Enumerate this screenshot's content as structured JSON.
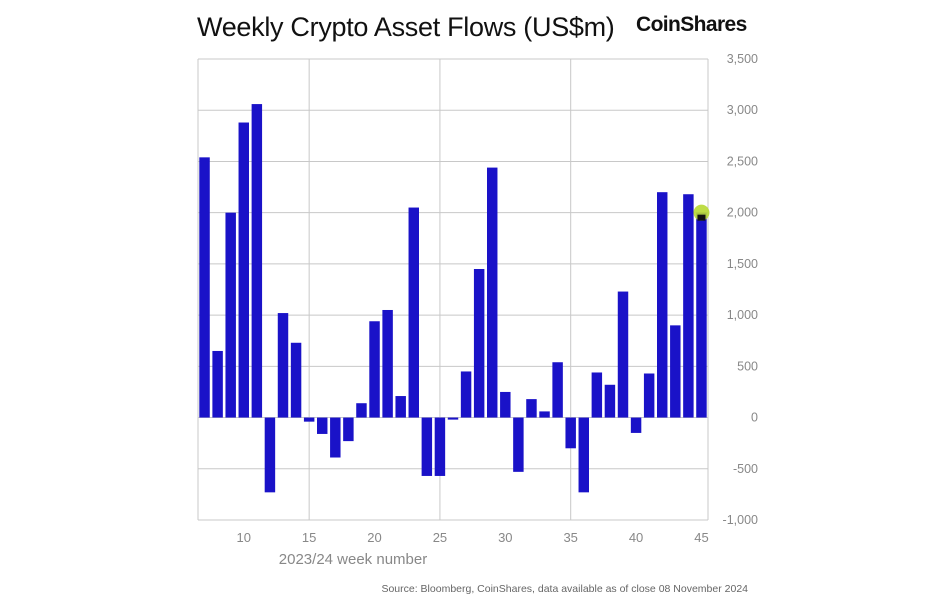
{
  "title": "Weekly Crypto Asset Flows (US$m)",
  "logo_text": "CoinShares",
  "source": "Source: Bloomberg, CoinShares, data available as of close 08 November 2024",
  "colors": {
    "bar": "#1a12c8",
    "grid": "#c8c8c8",
    "marker": "#b7d833"
  },
  "chart_data": {
    "type": "bar",
    "title": "Weekly Crypto Asset Flows (US$m)",
    "xlabel": "2023/24 week number",
    "ylabel": "US$m",
    "y_axis_side": "right",
    "ylim": [
      -1000,
      3500
    ],
    "ytick_values": [
      -1000,
      -500,
      0,
      500,
      1000,
      1500,
      2000,
      2500,
      3000,
      3500
    ],
    "ytick_labels": [
      "-1,000",
      "-500",
      "0",
      "500",
      "1,000",
      "1,500",
      "2,000",
      "2,500",
      "3,000",
      "3,500"
    ],
    "xlim": [
      6.5,
      45.5
    ],
    "xtick_values": [
      10,
      15,
      20,
      25,
      30,
      35,
      40,
      45
    ],
    "xtick_labels": [
      "10",
      "15",
      "20",
      "25",
      "30",
      "35",
      "40",
      "45"
    ],
    "vertical_grid_weeks": [
      15,
      25,
      35
    ],
    "weeks": [
      7,
      8,
      9,
      10,
      11,
      12,
      13,
      14,
      15,
      16,
      17,
      18,
      19,
      20,
      21,
      22,
      23,
      24,
      25,
      26,
      27,
      28,
      29,
      30,
      31,
      32,
      33,
      34,
      35,
      36,
      37,
      38,
      39,
      40,
      41,
      42,
      43,
      44,
      45
    ],
    "values": [
      2540,
      650,
      2000,
      2880,
      3060,
      -730,
      1020,
      730,
      -40,
      -160,
      -390,
      -230,
      140,
      940,
      1050,
      210,
      2050,
      -570,
      -570,
      -20,
      450,
      1450,
      2440,
      250,
      -530,
      180,
      60,
      540,
      -300,
      -730,
      440,
      320,
      1230,
      -150,
      430,
      2200,
      900,
      2180,
      2000
    ],
    "marker": {
      "week": 45,
      "value": 2000
    }
  }
}
